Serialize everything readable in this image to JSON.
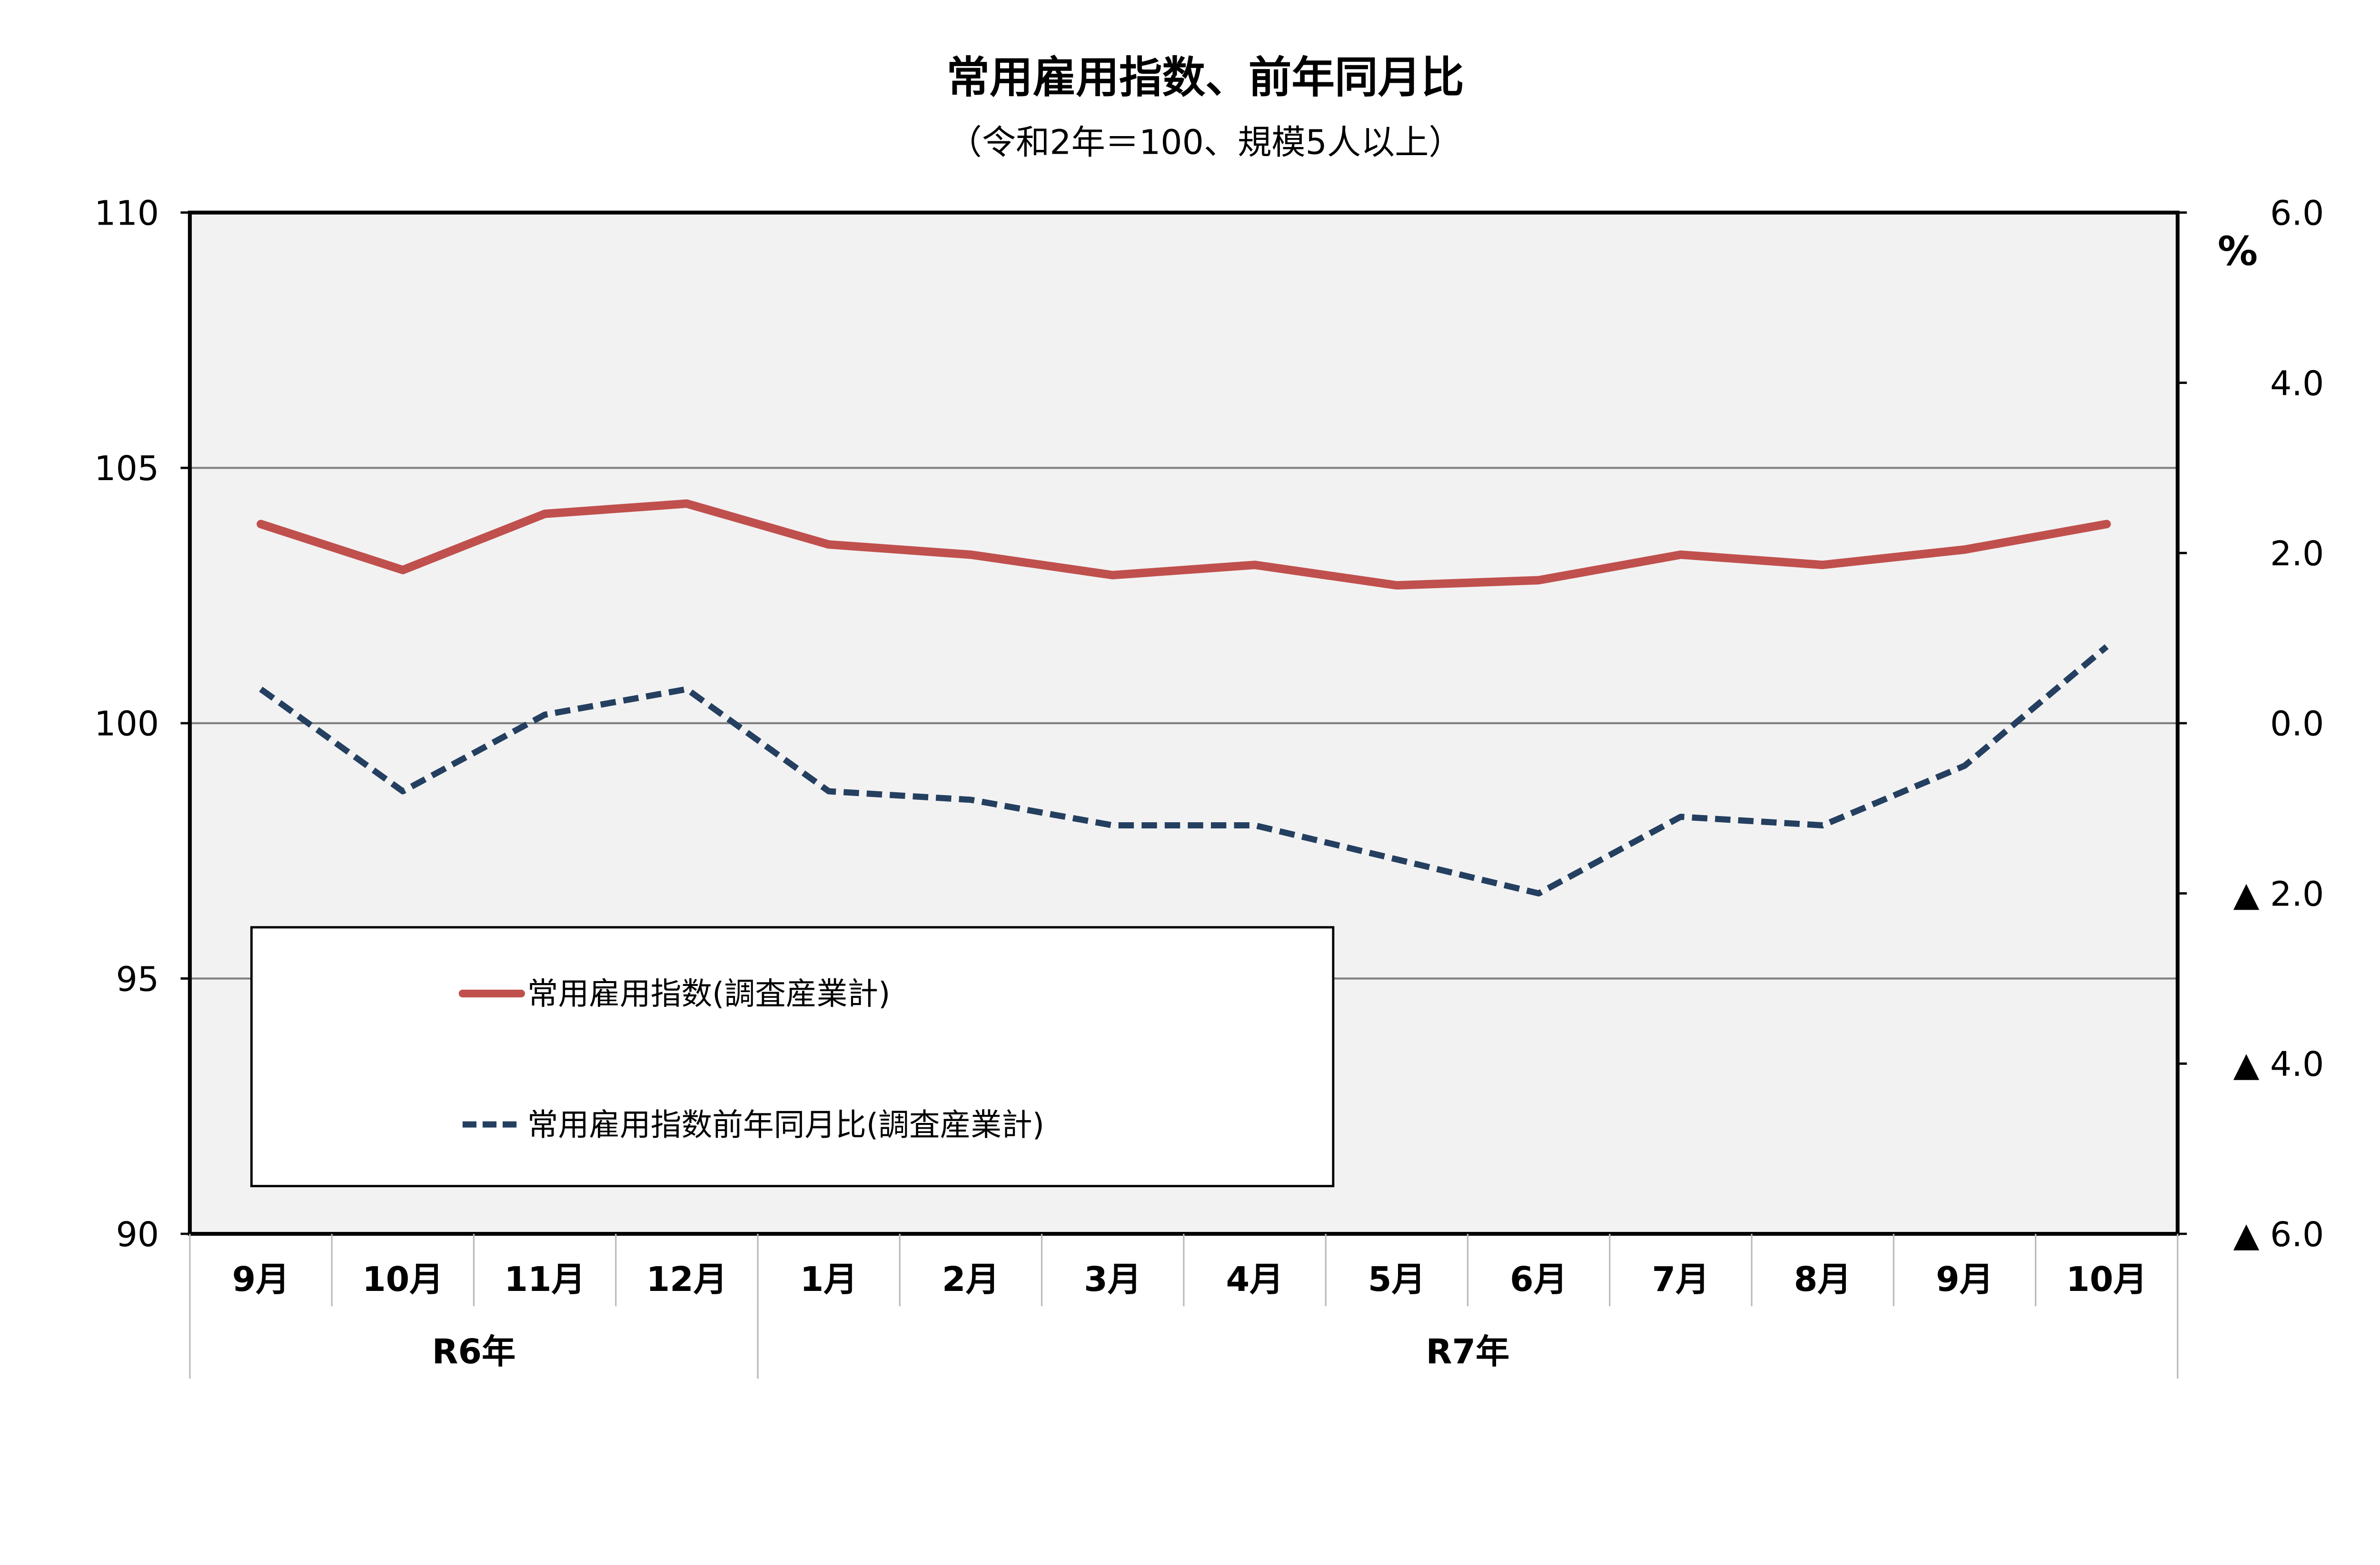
{
  "chart_data": {
    "type": "line",
    "title": "常用雇用指数、前年同月比",
    "subtitle": "（令和2年＝100、規模5人以上）",
    "categories": [
      "9月",
      "10月",
      "11月",
      "12月",
      "1月",
      "2月",
      "3月",
      "4月",
      "5月",
      "6月",
      "7月",
      "8月",
      "9月",
      "10月"
    ],
    "year_groups": [
      {
        "label": "R6年",
        "count": 4
      },
      {
        "label": "R7年",
        "count": 10
      }
    ],
    "left_axis": {
      "ylim": [
        90,
        110
      ],
      "ticks": [
        "90",
        "95",
        "100",
        "105",
        "110"
      ],
      "tick_values": [
        90,
        95,
        100,
        105,
        110
      ]
    },
    "right_axis": {
      "ylim": [
        -6,
        6
      ],
      "unit": "%",
      "ticks": [
        "▲ 6.0",
        "▲ 4.0",
        "▲ 2.0",
        "0.0",
        "2.0",
        "4.0",
        "6.0"
      ],
      "tick_values": [
        -6,
        -4,
        -2,
        0,
        2,
        4,
        6
      ]
    },
    "grid": true,
    "legend_position": "bottom-left",
    "series": [
      {
        "name": "常用雇用指数(調査産業計)",
        "axis": "left",
        "color": "#C0504D",
        "style": "solid",
        "values": [
          103.9,
          103.0,
          104.1,
          104.3,
          103.5,
          103.3,
          102.9,
          103.1,
          102.7,
          102.8,
          103.3,
          103.1,
          103.4,
          103.9
        ]
      },
      {
        "name": "常用雇用指数前年同月比(調査産業計)",
        "axis": "right",
        "color": "#243F60",
        "style": "dashed",
        "values": [
          0.4,
          -0.8,
          0.1,
          0.4,
          -0.8,
          -0.9,
          -1.2,
          -1.2,
          -1.6,
          -2.0,
          -1.1,
          -1.2,
          -0.5,
          0.9
        ]
      }
    ]
  }
}
